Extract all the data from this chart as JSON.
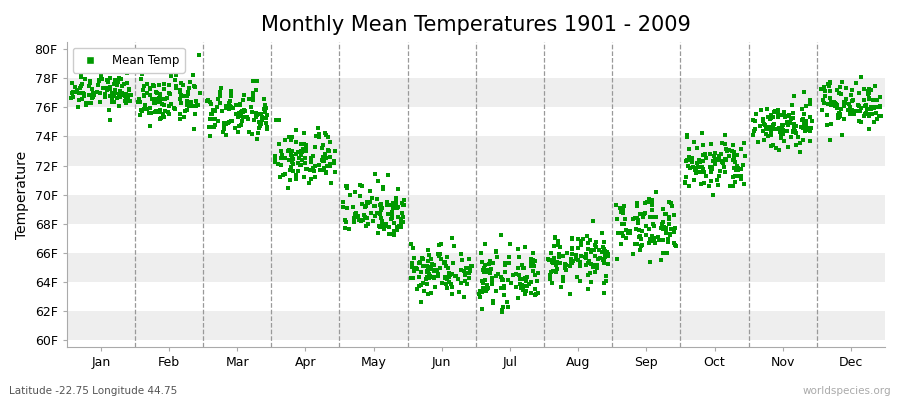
{
  "title": "Monthly Mean Temperatures 1901 - 2009",
  "ylabel": "Temperature",
  "xlabel": "",
  "bottom_left_label": "Latitude -22.75 Longitude 44.75",
  "bottom_right_label": "worldspecies.org",
  "legend_label": "Mean Temp",
  "marker_color": "#009900",
  "marker": "s",
  "marker_size": 3.5,
  "yticks": [
    60,
    62,
    64,
    66,
    68,
    70,
    72,
    74,
    76,
    78,
    80
  ],
  "ytick_labels": [
    "60F",
    "62F",
    "64F",
    "66F",
    "68F",
    "70F",
    "72F",
    "74F",
    "76F",
    "78F",
    "80F"
  ],
  "ylim": [
    59.5,
    80.5
  ],
  "months": [
    "Jan",
    "Feb",
    "Mar",
    "Apr",
    "May",
    "Jun",
    "Jul",
    "Aug",
    "Sep",
    "Oct",
    "Nov",
    "Dec"
  ],
  "background_color": "#ffffff",
  "band_colors": [
    "#eeeeee",
    "#ffffff"
  ],
  "title_fontsize": 15,
  "axis_label_fontsize": 10,
  "tick_fontsize": 9,
  "monthly_means": [
    77.2,
    76.5,
    75.5,
    72.5,
    69.0,
    64.8,
    64.2,
    65.5,
    67.8,
    72.0,
    74.8,
    76.3
  ],
  "monthly_stds": [
    0.7,
    0.8,
    0.9,
    1.0,
    1.0,
    0.9,
    0.9,
    0.9,
    1.0,
    1.0,
    0.9,
    0.8
  ],
  "n_years": 109,
  "dashed_line_color": "#999999"
}
